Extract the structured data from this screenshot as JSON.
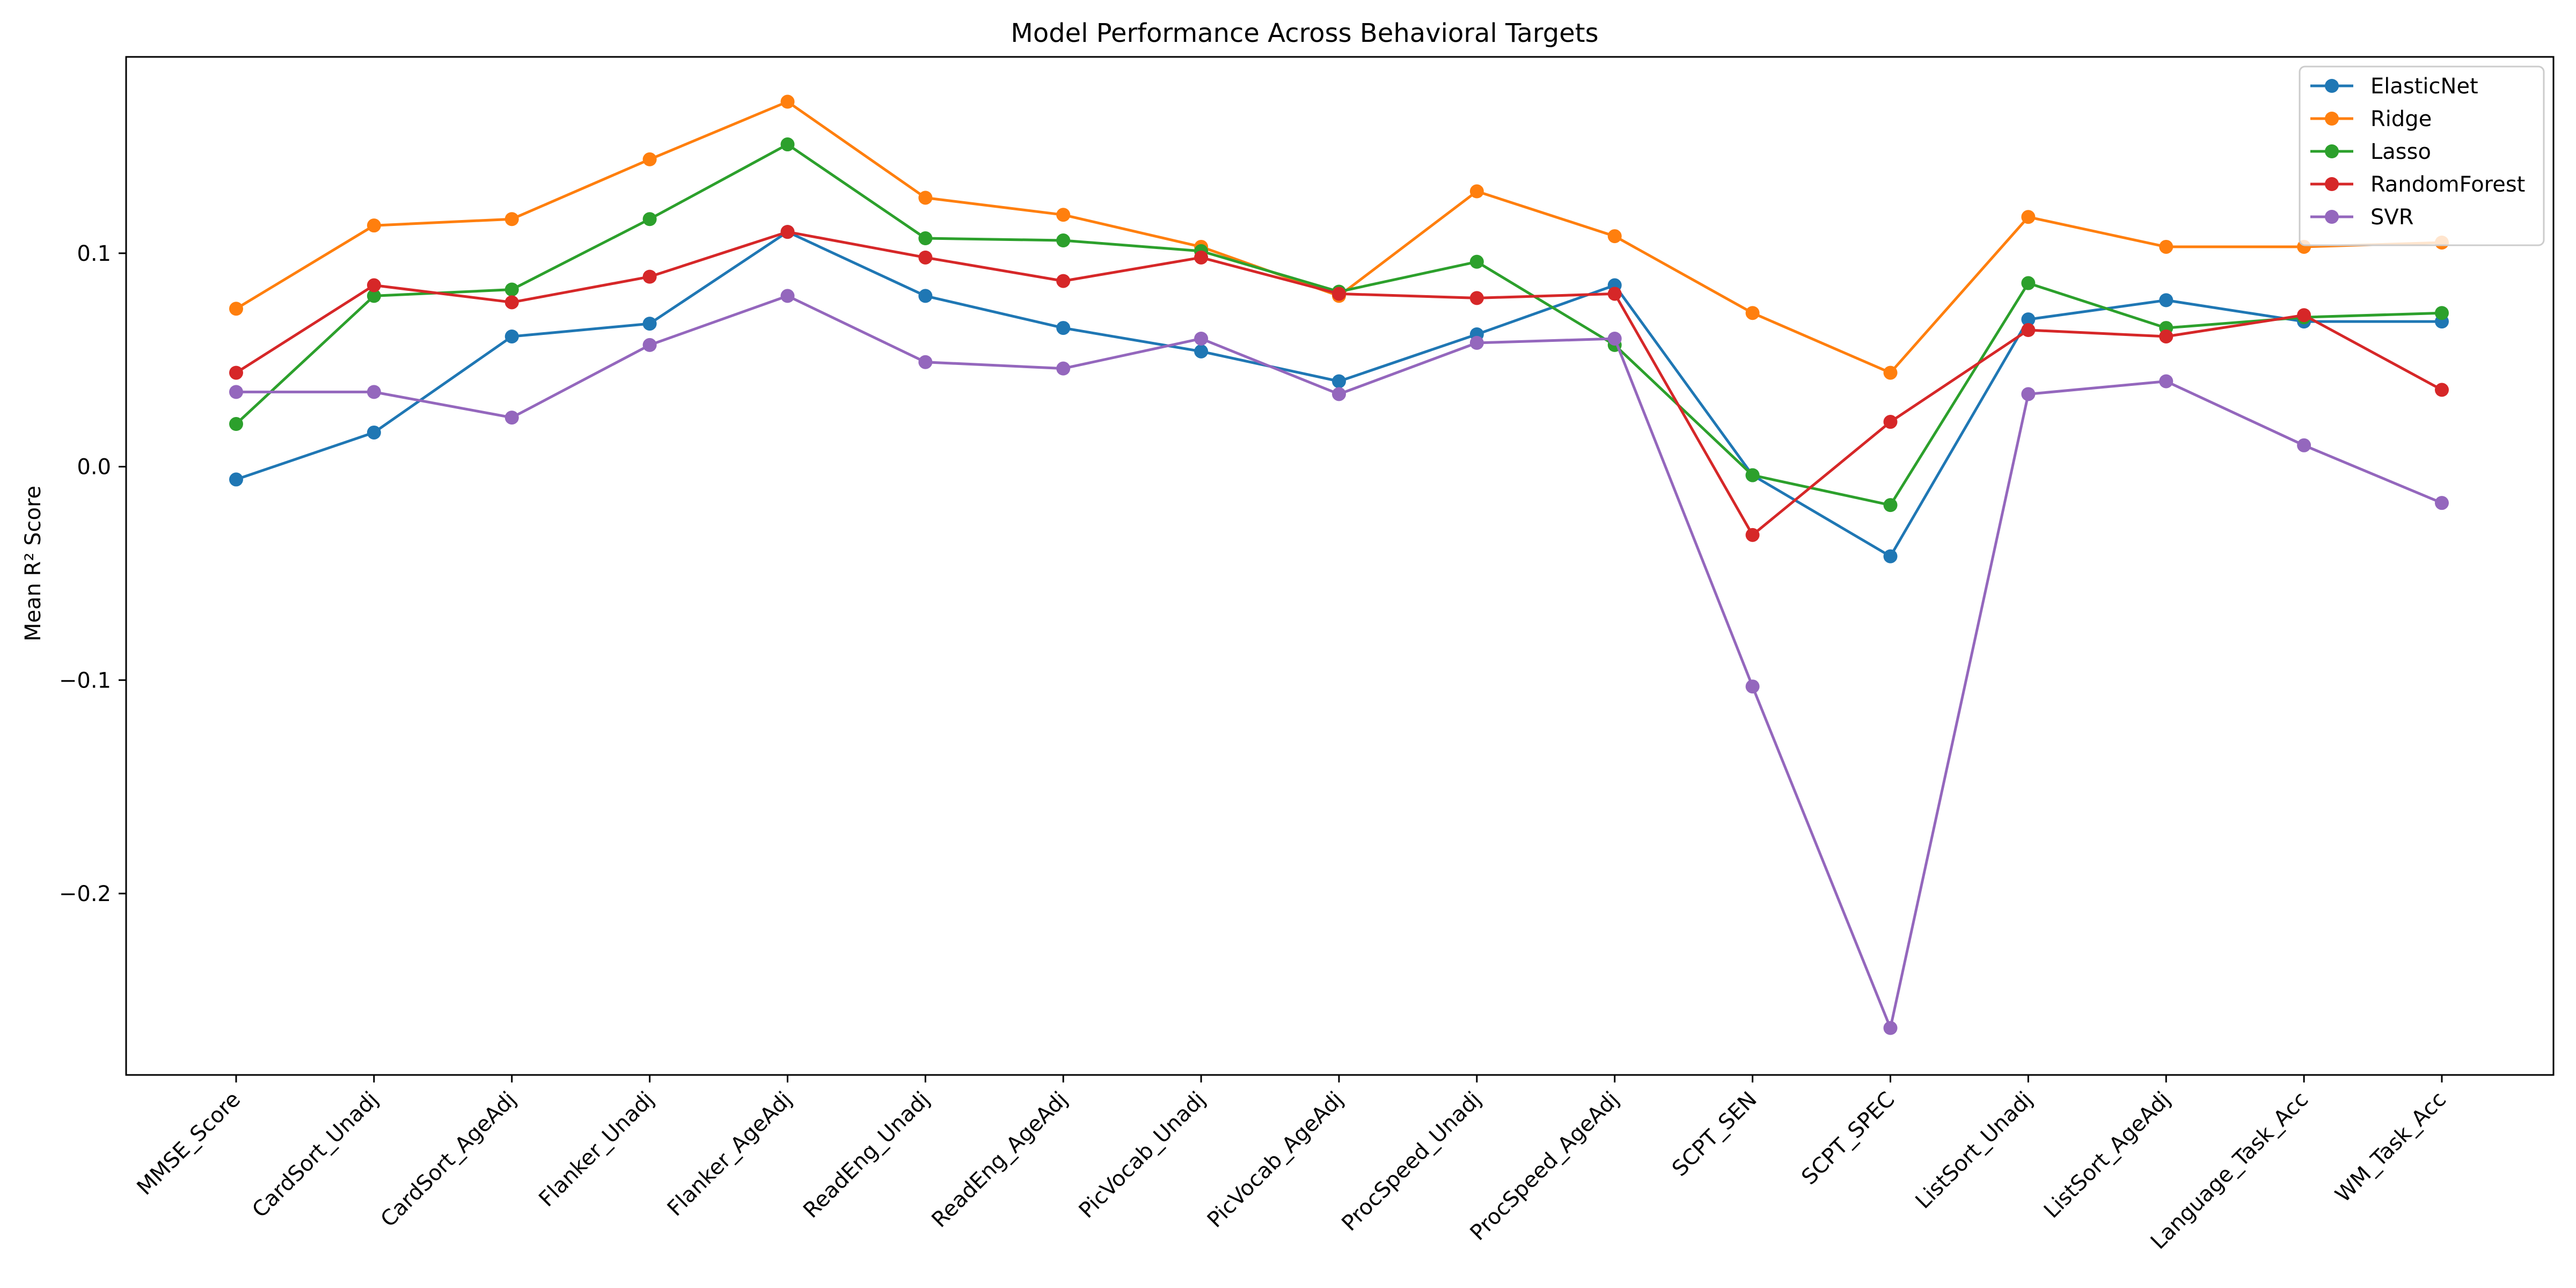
{
  "chart_data": {
    "type": "line",
    "title": "Model Performance Across Behavioral Targets",
    "xlabel": "",
    "ylabel": "Mean R² Score",
    "categories": [
      "MMSE_Score",
      "CardSort_Unadj",
      "CardSort_AgeAdj",
      "Flanker_Unadj",
      "Flanker_AgeAdj",
      "ReadEng_Unadj",
      "ReadEng_AgeAdj",
      "PicVocab_Unadj",
      "PicVocab_AgeAdj",
      "ProcSpeed_Unadj",
      "ProcSpeed_AgeAdj",
      "SCPT_SEN",
      "SCPT_SPEC",
      "ListSort_Unadj",
      "ListSort_AgeAdj",
      "Language_Task_Acc",
      "WM_Task_Acc"
    ],
    "ylim": [
      -0.285,
      0.192
    ],
    "yticks": [
      -0.2,
      -0.1,
      0.0,
      0.1
    ],
    "ytick_labels": [
      "−0.2",
      "−0.1",
      "0.0",
      "0.1"
    ],
    "grid": false,
    "legend_position": "top-right",
    "series": [
      {
        "name": "ElasticNet",
        "color": "#1f77b4",
        "values": [
          -0.006,
          0.016,
          0.061,
          0.067,
          0.11,
          0.08,
          0.065,
          0.054,
          0.04,
          0.062,
          0.085,
          -0.004,
          -0.042,
          0.069,
          0.078,
          0.068,
          0.068
        ]
      },
      {
        "name": "Ridge",
        "color": "#ff7f0e",
        "values": [
          0.074,
          0.113,
          0.116,
          0.144,
          0.171,
          0.126,
          0.118,
          0.103,
          0.08,
          0.129,
          0.108,
          0.072,
          0.044,
          0.117,
          0.103,
          0.103,
          0.105
        ]
      },
      {
        "name": "Lasso",
        "color": "#2ca02c",
        "values": [
          0.02,
          0.08,
          0.083,
          0.116,
          0.151,
          0.107,
          0.106,
          0.101,
          0.082,
          0.096,
          0.057,
          -0.004,
          -0.018,
          0.086,
          0.065,
          0.07,
          0.072
        ]
      },
      {
        "name": "RandomForest",
        "color": "#d62728",
        "values": [
          0.044,
          0.085,
          0.077,
          0.089,
          0.11,
          0.098,
          0.087,
          0.098,
          0.081,
          0.079,
          0.081,
          -0.032,
          0.021,
          0.064,
          0.061,
          0.071,
          0.036
        ]
      },
      {
        "name": "SVR",
        "color": "#9467bd",
        "values": [
          0.035,
          0.035,
          0.023,
          0.057,
          0.08,
          0.049,
          0.046,
          0.06,
          0.034,
          0.058,
          0.06,
          -0.103,
          -0.263,
          0.034,
          0.04,
          0.01,
          -0.017
        ]
      }
    ]
  }
}
